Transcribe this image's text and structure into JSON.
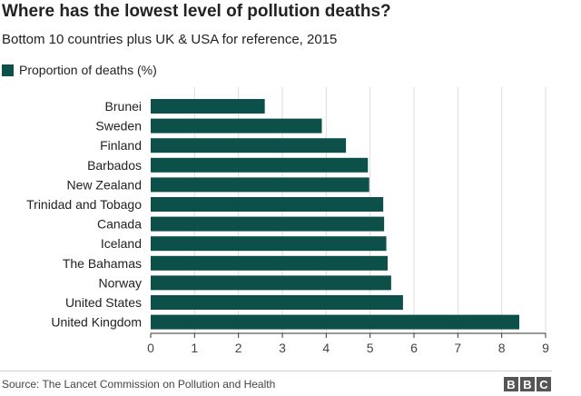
{
  "header": {
    "title": "Where has the lowest level of pollution deaths?",
    "subtitle": "Bottom 10 countries plus UK & USA for reference, 2015"
  },
  "footer": {
    "source": "Source: The Lancet Commission on Pollution and Health",
    "logo_letters": [
      "B",
      "B",
      "C"
    ]
  },
  "colors": {
    "bar": "#0d5049",
    "grid": "#dddddd",
    "axis": "#333333",
    "text": "#222222"
  },
  "chart_data": {
    "type": "bar",
    "orientation": "horizontal",
    "title": "Where has the lowest level of pollution deaths?",
    "subtitle": "Bottom 10 countries plus UK & USA for reference, 2015",
    "categories": [
      "Brunei",
      "Sweden",
      "Finland",
      "Barbados",
      "New Zealand",
      "Trinidad and Tobago",
      "Canada",
      "Iceland",
      "The Bahamas",
      "Norway",
      "United States",
      "United Kingdom"
    ],
    "series": [
      {
        "name": "Proportion of deaths (%)",
        "values": [
          2.6,
          3.9,
          4.45,
          4.95,
          4.98,
          5.3,
          5.32,
          5.37,
          5.4,
          5.48,
          5.75,
          8.4
        ]
      }
    ],
    "xlim": [
      0,
      9
    ],
    "xticks": [
      "0",
      "1",
      "2",
      "3",
      "4",
      "5",
      "6",
      "7",
      "8",
      "9"
    ],
    "xlabel": "",
    "ylabel": "",
    "grid": true,
    "legend_position": "top-left"
  }
}
